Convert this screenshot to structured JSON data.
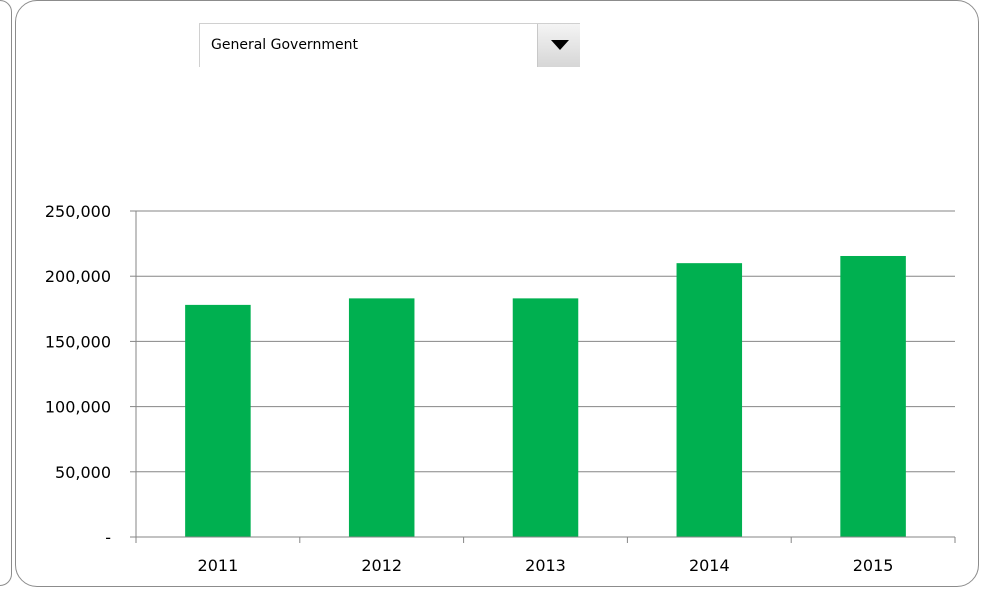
{
  "selector": {
    "selected": "General Government"
  },
  "chart_data": {
    "type": "bar",
    "categories": [
      "2011",
      "2012",
      "2013",
      "2014",
      "2015"
    ],
    "values": [
      178000,
      183000,
      183000,
      210000,
      215500
    ],
    "ylim": [
      0,
      250000
    ],
    "yticks": [
      0,
      50000,
      100000,
      150000,
      200000,
      250000
    ],
    "ytick_labels": [
      "-",
      "50,000",
      "100,000",
      "150,000",
      "200,000",
      "250,000"
    ],
    "grid": true,
    "bar_color": "#00b050",
    "legend": "none"
  }
}
